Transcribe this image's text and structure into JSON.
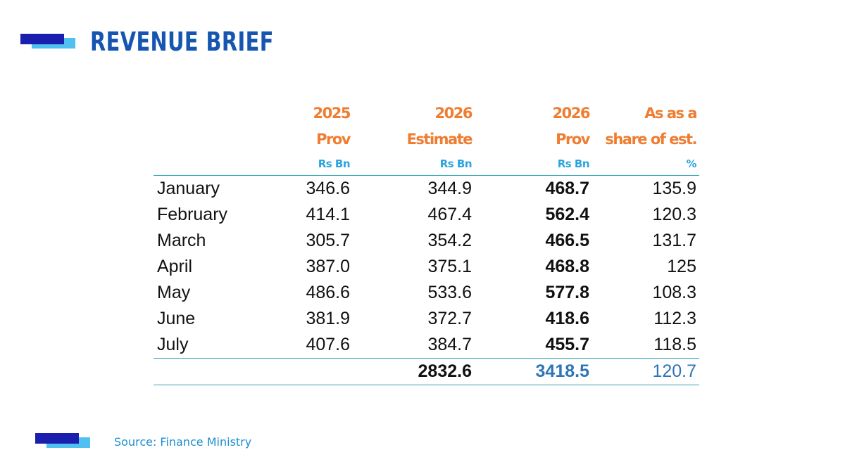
{
  "title": "REVENUE BRIEF",
  "table": {
    "headers": [
      {
        "line1": "",
        "line2": "",
        "unit": ""
      },
      {
        "line1": "2025",
        "line2": "Prov",
        "unit": "Rs Bn"
      },
      {
        "line1": "2026",
        "line2": "Estimate",
        "unit": "Rs Bn"
      },
      {
        "line1": "2026",
        "line2": "Prov",
        "unit": "Rs Bn"
      },
      {
        "line1": "As as a",
        "line2": "share of est.",
        "unit": "%"
      }
    ],
    "rows": [
      {
        "month": "January",
        "prov_2025": "346.6",
        "est_2026": "344.9",
        "prov_2026": "468.7",
        "share": "135.9"
      },
      {
        "month": "February",
        "prov_2025": "414.1",
        "est_2026": "467.4",
        "prov_2026": "562.4",
        "share": "120.3"
      },
      {
        "month": "March",
        "prov_2025": "305.7",
        "est_2026": "354.2",
        "prov_2026": "466.5",
        "share": "131.7"
      },
      {
        "month": "April",
        "prov_2025": "387.0",
        "est_2026": "375.1",
        "prov_2026": "468.8",
        "share": "125"
      },
      {
        "month": "May",
        "prov_2025": "486.6",
        "est_2026": "533.6",
        "prov_2026": "577.8",
        "share": "108.3"
      },
      {
        "month": "June",
        "prov_2025": "381.9",
        "est_2026": "372.7",
        "prov_2026": "418.6",
        "share": "112.3"
      },
      {
        "month": "July",
        "prov_2025": "407.6",
        "est_2026": "384.7",
        "prov_2026": "455.7",
        "share": "118.5"
      }
    ],
    "total": {
      "est_2026": "2832.6",
      "prov_2026": "3418.5",
      "share": "120.7"
    }
  },
  "source": "Source: Finance Ministry",
  "colors": {
    "title": "#1655b0",
    "header": "#ef7d31",
    "unit": "#2aa4e0",
    "total_highlight": "#2e75b6",
    "mark_dark": "#1b1fae",
    "mark_light": "#4fc0f0"
  }
}
